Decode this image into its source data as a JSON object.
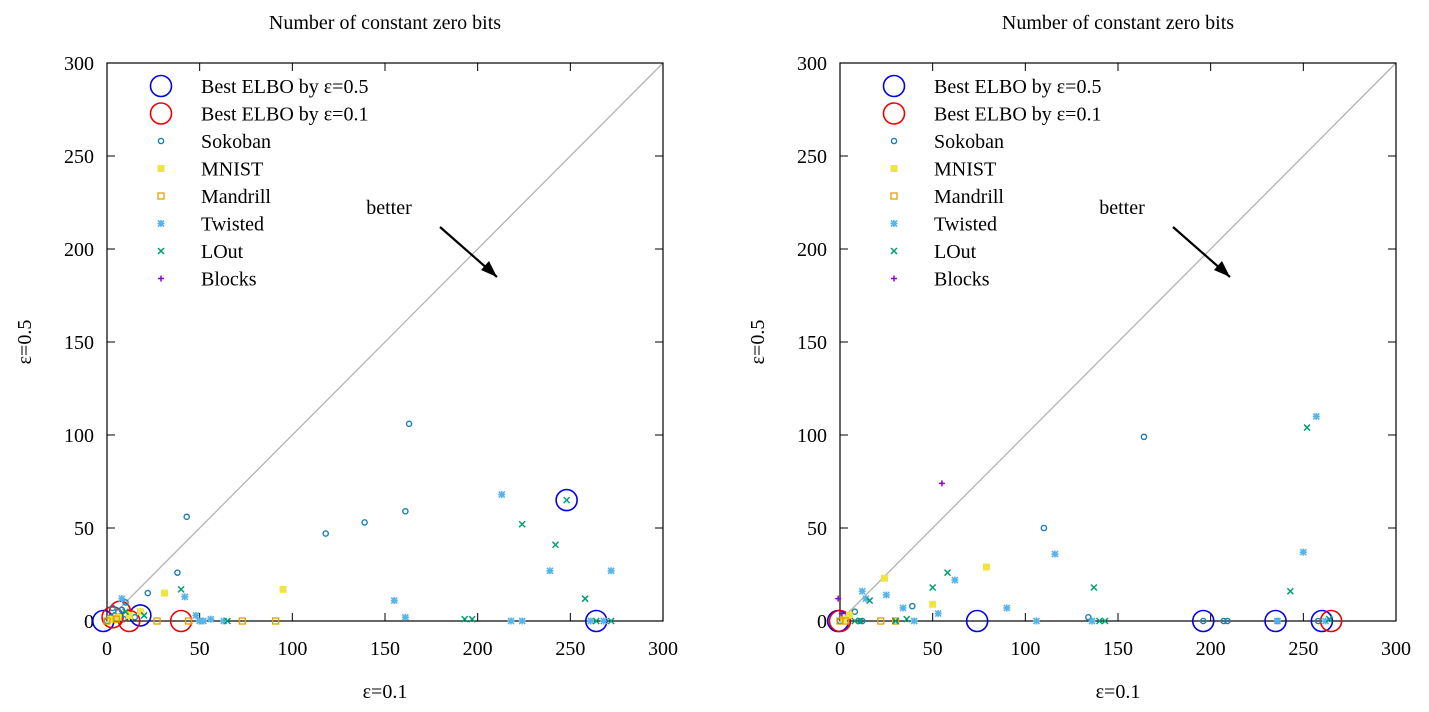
{
  "chart_data": [
    {
      "type": "scatter",
      "title": "Number of constant zero bits",
      "xlabel": "ε=0.1",
      "ylabel": "ε=0.5",
      "xlim": [
        0,
        300
      ],
      "ylim": [
        0,
        300
      ],
      "xticks": [
        "0",
        "50",
        "100",
        "150",
        "200",
        "250",
        "300"
      ],
      "yticks": [
        "0",
        "50",
        "100",
        "150",
        "200",
        "250",
        "300"
      ],
      "grid": false,
      "legend_position": "top-left",
      "diagonal": true,
      "annotation": "better",
      "series": [
        {
          "name": "Best ELBO by ε=0.5",
          "marker": "big-circle",
          "color": "#0000ee",
          "x": [
            -2,
            18,
            248,
            264
          ],
          "y": [
            0,
            3,
            65,
            0
          ]
        },
        {
          "name": "Best ELBO by ε=0.1",
          "marker": "big-circle",
          "color": "#ee0000",
          "x": [
            3,
            7,
            12,
            40
          ],
          "y": [
            2,
            5,
            0,
            0
          ]
        },
        {
          "name": "Sokoban",
          "marker": "circle",
          "color": "#1a7fb5",
          "x": [
            0,
            2,
            4,
            6,
            8,
            10,
            12,
            15,
            18,
            22,
            38,
            43,
            118,
            139,
            161,
            163,
            3,
            9
          ],
          "y": [
            0,
            2,
            3,
            5,
            6,
            10,
            3,
            2,
            5,
            15,
            26,
            56,
            47,
            53,
            59,
            106,
            7,
            1
          ]
        },
        {
          "name": "MNIST",
          "marker": "square",
          "color": "#f0e442",
          "x": [
            2,
            6,
            12,
            18,
            31,
            95
          ],
          "y": [
            1,
            2,
            3,
            5,
            15,
            17
          ]
        },
        {
          "name": "Mandrill",
          "marker": "open-square",
          "color": "#e69f00",
          "x": [
            0,
            5,
            27,
            44,
            73,
            91
          ],
          "y": [
            0,
            1,
            0,
            0,
            0,
            0
          ]
        },
        {
          "name": "Twisted",
          "marker": "star",
          "color": "#56b4e9",
          "x": [
            8,
            42,
            48,
            50,
            52,
            56,
            63,
            155,
            161,
            213,
            218,
            224,
            239,
            261,
            268,
            272
          ],
          "y": [
            12,
            13,
            3,
            0,
            0,
            1,
            0,
            11,
            2,
            68,
            0,
            0,
            27,
            0,
            0,
            27
          ]
        },
        {
          "name": "LOut",
          "marker": "x",
          "color": "#009e73",
          "x": [
            10,
            20,
            40,
            65,
            193,
            197,
            224,
            242,
            248,
            258,
            264,
            272
          ],
          "y": [
            5,
            3,
            17,
            0,
            1,
            1,
            52,
            41,
            65,
            12,
            0,
            0
          ]
        },
        {
          "name": "Blocks",
          "marker": "plus",
          "color": "#9400d3",
          "x": [],
          "y": []
        }
      ]
    },
    {
      "type": "scatter",
      "title": "Number of constant zero bits",
      "xlabel": "ε=0.1",
      "ylabel": "ε=0.5",
      "xlim": [
        0,
        300
      ],
      "ylim": [
        0,
        300
      ],
      "xticks": [
        "0",
        "50",
        "100",
        "150",
        "200",
        "250",
        "300"
      ],
      "yticks": [
        "0",
        "50",
        "100",
        "150",
        "200",
        "250",
        "300"
      ],
      "grid": false,
      "legend_position": "top-left",
      "diagonal": true,
      "annotation": "better",
      "series": [
        {
          "name": "Best ELBO by ε=0.5",
          "marker": "big-circle",
          "color": "#0000ee",
          "x": [
            -1,
            74,
            196,
            235,
            260
          ],
          "y": [
            0,
            0,
            0,
            0,
            0
          ]
        },
        {
          "name": "Best ELBO by ε=0.1",
          "marker": "big-circle",
          "color": "#ee0000",
          "x": [
            0,
            265
          ],
          "y": [
            0,
            0
          ]
        },
        {
          "name": "Sokoban",
          "marker": "circle",
          "color": "#1a7fb5",
          "x": [
            0,
            2,
            5,
            8,
            10,
            12,
            39,
            110,
            134,
            164,
            196,
            207,
            209,
            236,
            258
          ],
          "y": [
            0,
            1,
            3,
            5,
            0,
            0,
            8,
            50,
            2,
            99,
            0,
            0,
            0,
            0,
            0
          ]
        },
        {
          "name": "MNIST",
          "marker": "square",
          "color": "#f0e442",
          "x": [
            2,
            5,
            24,
            50,
            79
          ],
          "y": [
            1,
            3,
            23,
            9,
            29
          ]
        },
        {
          "name": "Mandrill",
          "marker": "open-square",
          "color": "#e69f00",
          "x": [
            0,
            3,
            22,
            30
          ],
          "y": [
            0,
            0,
            0,
            0
          ]
        },
        {
          "name": "Twisted",
          "marker": "star",
          "color": "#56b4e9",
          "x": [
            12,
            14,
            25,
            34,
            40,
            53,
            62,
            90,
            106,
            116,
            136,
            236,
            250,
            257,
            262
          ],
          "y": [
            16,
            12,
            14,
            7,
            0,
            4,
            22,
            7,
            0,
            36,
            0,
            0,
            37,
            110,
            0
          ]
        },
        {
          "name": "LOut",
          "marker": "x",
          "color": "#009e73",
          "x": [
            8,
            11,
            16,
            30,
            36,
            50,
            58,
            137,
            140,
            143,
            243,
            252,
            264
          ],
          "y": [
            0,
            0,
            11,
            0,
            1,
            18,
            26,
            18,
            0,
            0,
            16,
            104,
            1
          ]
        },
        {
          "name": "Blocks",
          "marker": "plus",
          "color": "#9400d3",
          "x": [
            -1,
            1,
            55
          ],
          "y": [
            12,
            4,
            74
          ]
        }
      ]
    }
  ]
}
